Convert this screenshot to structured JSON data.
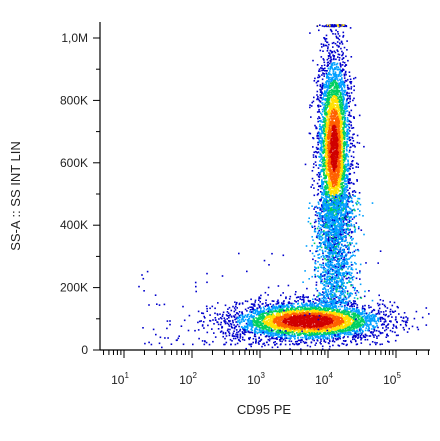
{
  "chart_data": {
    "type": "scatter",
    "title": "",
    "xlabel": "CD95 PE",
    "ylabel": "SS-A :: SS INT LIN",
    "x_scale": "log",
    "xlim": [
      10,
      100000
    ],
    "ylim": [
      0,
      1050000
    ],
    "x_ticks": [
      {
        "value": 10,
        "base": "10",
        "exp": "1"
      },
      {
        "value": 100,
        "base": "10",
        "exp": "2"
      },
      {
        "value": 1000,
        "base": "10",
        "exp": "3"
      },
      {
        "value": 10000,
        "base": "10",
        "exp": "4"
      },
      {
        "value": 100000,
        "base": "10",
        "exp": "5"
      }
    ],
    "y_ticks": [
      {
        "value": 0,
        "label": "0"
      },
      {
        "value": 200000,
        "label": "200K"
      },
      {
        "value": 400000,
        "label": "400K"
      },
      {
        "value": 600000,
        "label": "600K"
      },
      {
        "value": 800000,
        "label": "800K"
      },
      {
        "value": 1000000,
        "label": "1,0M"
      }
    ],
    "density_colormap": [
      "#0000cc",
      "#00a0ff",
      "#00d060",
      "#ffe000",
      "#ff6000",
      "#d00000"
    ],
    "populations": [
      {
        "x_center": 5000,
        "y_center": 95000,
        "x_log_spread": 0.55,
        "y_spread": 30000,
        "peak_density": "high"
      },
      {
        "x_center": 12000,
        "y_center": 650000,
        "x_log_spread": 0.12,
        "y_spread": 150000,
        "peak_density": "high"
      },
      {
        "x_center": 12000,
        "y_center": 300000,
        "x_log_spread": 0.15,
        "y_spread": 80000,
        "peak_density": "low"
      }
    ],
    "grid": false
  }
}
